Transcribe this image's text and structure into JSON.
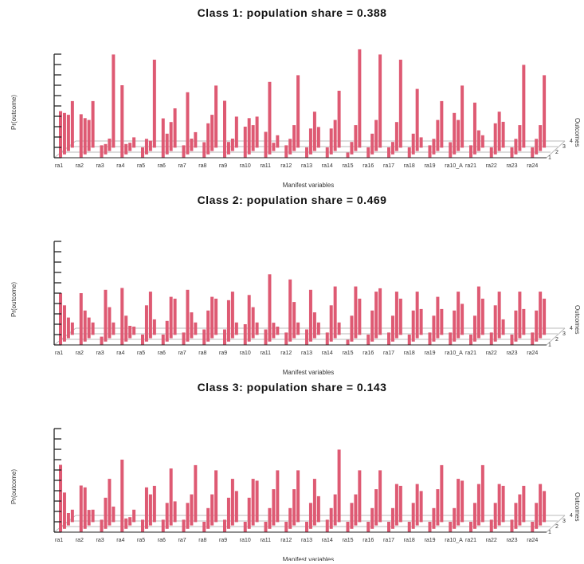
{
  "colors": {
    "bar": "#de5a73",
    "axis": "#222222",
    "grid": "#bbbbbb"
  },
  "chart_data": [
    {
      "type": "bar",
      "title": "Class 1: population share = 0.388",
      "xlabel": "Manifest variables",
      "ylabel": "Pr(outcome)",
      "zlabel": "Outcomes",
      "categories": [
        "ra1",
        "ra2",
        "ra3",
        "ra4",
        "ra5",
        "ra6",
        "ra7",
        "ra8",
        "ra9",
        "ra10",
        "ra11",
        "ra12",
        "ra13",
        "ra14",
        "ra15",
        "ra16",
        "ra17",
        "ra18",
        "ra19",
        "ra10_A",
        "ra21",
        "ra22",
        "ra23",
        "ra24"
      ],
      "outcomes": [
        "1",
        "2",
        "3",
        "4"
      ],
      "values": [
        [
          0.45,
          0.4,
          0.35,
          0.45
        ],
        [
          0.42,
          0.35,
          0.3,
          0.45
        ],
        [
          0.12,
          0.1,
          0.12,
          0.9
        ],
        [
          0.7,
          0.1,
          0.08,
          0.1
        ],
        [
          0.1,
          0.15,
          0.1,
          0.85
        ],
        [
          0.38,
          0.2,
          0.28,
          0.38
        ],
        [
          0.12,
          0.6,
          0.12,
          0.15
        ],
        [
          0.15,
          0.3,
          0.35,
          0.6
        ],
        [
          0.55,
          0.12,
          0.12,
          0.3
        ],
        [
          0.3,
          0.35,
          0.25,
          0.3
        ],
        [
          0.25,
          0.7,
          0.08,
          0.12
        ],
        [
          0.12,
          0.15,
          0.25,
          0.7
        ],
        [
          0.1,
          0.25,
          0.38,
          0.2
        ],
        [
          0.1,
          0.25,
          0.3,
          0.55
        ],
        [
          0.05,
          0.12,
          0.25,
          0.95
        ],
        [
          0.1,
          0.2,
          0.3,
          0.9
        ],
        [
          0.1,
          0.12,
          0.28,
          0.85
        ],
        [
          0.1,
          0.2,
          0.6,
          0.1
        ],
        [
          0.12,
          0.15,
          0.3,
          0.45
        ],
        [
          0.15,
          0.4,
          0.3,
          0.6
        ],
        [
          0.12,
          0.5,
          0.2,
          0.12
        ],
        [
          0.1,
          0.3,
          0.38,
          0.25
        ],
        [
          0.1,
          0.15,
          0.25,
          0.8
        ],
        [
          0.1,
          0.15,
          0.25,
          0.7
        ]
      ]
    },
    {
      "type": "bar",
      "title": "Class 2: population share = 0.469",
      "xlabel": "Manifest variables",
      "ylabel": "Pr(outcome)",
      "zlabel": "Outcomes",
      "categories": [
        "ra1",
        "ra2",
        "ra3",
        "ra4",
        "ra5",
        "ra6",
        "ra7",
        "ra8",
        "ra9",
        "ra10",
        "ra11",
        "ra12",
        "ra13",
        "ra14",
        "ra15",
        "ra16",
        "ra17",
        "ra18",
        "ra19",
        "ra10_A",
        "ra21",
        "ra22",
        "ra23",
        "ra24"
      ],
      "outcomes": [
        "1",
        "2",
        "3",
        "4"
      ],
      "values": [
        [
          0.5,
          0.35,
          0.2,
          0.12
        ],
        [
          0.5,
          0.3,
          0.2,
          0.12
        ],
        [
          0.08,
          0.5,
          0.3,
          0.12
        ],
        [
          0.55,
          0.25,
          0.12,
          0.08
        ],
        [
          0.1,
          0.35,
          0.45,
          0.15
        ],
        [
          0.1,
          0.2,
          0.4,
          0.35
        ],
        [
          0.12,
          0.5,
          0.25,
          0.12
        ],
        [
          0.15,
          0.3,
          0.4,
          0.35
        ],
        [
          0.15,
          0.4,
          0.45,
          0.12
        ],
        [
          0.2,
          0.45,
          0.3,
          0.12
        ],
        [
          0.15,
          0.65,
          0.15,
          0.08
        ],
        [
          0.12,
          0.6,
          0.35,
          0.12
        ],
        [
          0.15,
          0.5,
          0.25,
          0.12
        ],
        [
          0.12,
          0.35,
          0.5,
          0.12
        ],
        [
          0.05,
          0.25,
          0.5,
          0.35
        ],
        [
          0.1,
          0.3,
          0.45,
          0.45
        ],
        [
          0.12,
          0.25,
          0.45,
          0.35
        ],
        [
          0.1,
          0.3,
          0.45,
          0.25
        ],
        [
          0.12,
          0.25,
          0.4,
          0.25
        ],
        [
          0.12,
          0.3,
          0.45,
          0.3
        ],
        [
          0.1,
          0.25,
          0.5,
          0.35
        ],
        [
          0.12,
          0.35,
          0.45,
          0.15
        ],
        [
          0.1,
          0.3,
          0.45,
          0.25
        ],
        [
          0.12,
          0.3,
          0.45,
          0.35
        ]
      ]
    },
    {
      "type": "bar",
      "title": "Class 3: population share = 0.143",
      "xlabel": "Manifest variables",
      "ylabel": "Pr(outcome)",
      "zlabel": "Outcomes",
      "categories": [
        "ra1",
        "ra2",
        "ra3",
        "ra4",
        "ra5",
        "ra6",
        "ra7",
        "ra8",
        "ra9",
        "ra10",
        "ra11",
        "ra12",
        "ra13",
        "ra14",
        "ra15",
        "ra16",
        "ra17",
        "ra18",
        "ra19",
        "ra10_A",
        "ra21",
        "ra22",
        "ra23",
        "ra24"
      ],
      "outcomes": [
        "1",
        "2",
        "3",
        "4"
      ],
      "values": [
        [
          0.65,
          0.35,
          0.12,
          0.12
        ],
        [
          0.45,
          0.4,
          0.15,
          0.12
        ],
        [
          0.12,
          0.3,
          0.45,
          0.15
        ],
        [
          0.7,
          0.1,
          0.08,
          0.12
        ],
        [
          0.12,
          0.4,
          0.3,
          0.35
        ],
        [
          0.12,
          0.25,
          0.55,
          0.2
        ],
        [
          0.12,
          0.25,
          0.3,
          0.55
        ],
        [
          0.1,
          0.2,
          0.3,
          0.5
        ],
        [
          0.12,
          0.3,
          0.45,
          0.3
        ],
        [
          0.1,
          0.3,
          0.45,
          0.4
        ],
        [
          0.1,
          0.2,
          0.35,
          0.5
        ],
        [
          0.1,
          0.2,
          0.35,
          0.5
        ],
        [
          0.1,
          0.25,
          0.45,
          0.25
        ],
        [
          0.12,
          0.2,
          0.3,
          0.7
        ],
        [
          0.1,
          0.25,
          0.3,
          0.5
        ],
        [
          0.1,
          0.2,
          0.35,
          0.5
        ],
        [
          0.1,
          0.2,
          0.4,
          0.35
        ],
        [
          0.1,
          0.25,
          0.4,
          0.3
        ],
        [
          0.1,
          0.2,
          0.35,
          0.55
        ],
        [
          0.1,
          0.2,
          0.45,
          0.4
        ],
        [
          0.1,
          0.25,
          0.4,
          0.55
        ],
        [
          0.12,
          0.25,
          0.4,
          0.35
        ],
        [
          0.12,
          0.25,
          0.3,
          0.35
        ],
        [
          0.1,
          0.25,
          0.4,
          0.3
        ]
      ]
    }
  ]
}
